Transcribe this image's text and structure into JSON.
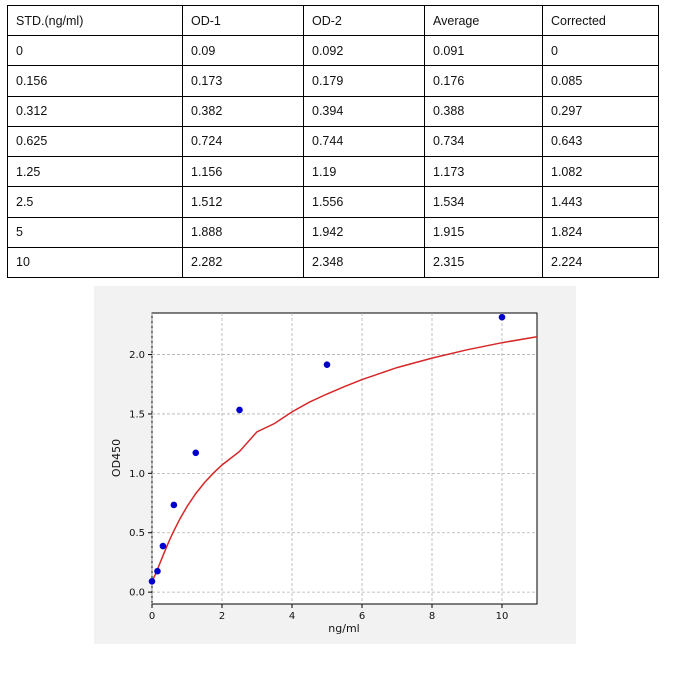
{
  "table": {
    "headers": [
      "STD.(ng/ml)",
      "OD-1",
      "OD-2",
      "Average",
      "Corrected"
    ],
    "rows": [
      [
        "0",
        "0.09",
        "0.092",
        "0.091",
        "0"
      ],
      [
        "0.156",
        "0.173",
        "0.179",
        "0.176",
        "0.085"
      ],
      [
        "0.312",
        "0.382",
        "0.394",
        "0.388",
        "0.297"
      ],
      [
        "0.625",
        "0.724",
        "0.744",
        "0.734",
        "0.643"
      ],
      [
        "1.25",
        "1.156",
        "1.19",
        "1.173",
        "1.082"
      ],
      [
        "2.5",
        "1.512",
        "1.556",
        "1.534",
        "1.443"
      ],
      [
        "5",
        "1.888",
        "1.942",
        "1.915",
        "1.824"
      ],
      [
        "10",
        "2.282",
        "2.348",
        "2.315",
        "2.224"
      ]
    ]
  },
  "chart_data": {
    "type": "scatter",
    "xlabel": "ng/ml",
    "ylabel": "OD450",
    "xlim": [
      0,
      11
    ],
    "ylim": [
      -0.1,
      2.35
    ],
    "xticks": [
      0,
      2,
      4,
      6,
      8,
      10
    ],
    "yticks": [
      0.0,
      0.5,
      1.0,
      1.5,
      2.0
    ],
    "grid": true,
    "points": {
      "x": [
        0,
        0.156,
        0.312,
        0.625,
        1.25,
        2.5,
        5,
        10
      ],
      "y": [
        0.091,
        0.176,
        0.388,
        0.734,
        1.173,
        1.534,
        1.915,
        2.315
      ],
      "color": "#0000cc"
    },
    "fit_curve": {
      "x": [
        0,
        0.1,
        0.2,
        0.3,
        0.4,
        0.5,
        0.6,
        0.8,
        1.0,
        1.25,
        1.5,
        1.75,
        2.0,
        2.5,
        3.0,
        3.5,
        4.0,
        4.5,
        5.0,
        5.5,
        6.0,
        7.0,
        8.0,
        9.0,
        10.0,
        11.0
      ],
      "y": [
        0.09,
        0.152,
        0.224,
        0.297,
        0.369,
        0.437,
        0.501,
        0.618,
        0.72,
        0.83,
        0.922,
        1.001,
        1.07,
        1.184,
        1.35,
        1.42,
        1.517,
        1.6,
        1.668,
        1.73,
        1.789,
        1.89,
        1.97,
        2.04,
        2.1,
        2.15
      ],
      "color": "#d62728"
    }
  }
}
